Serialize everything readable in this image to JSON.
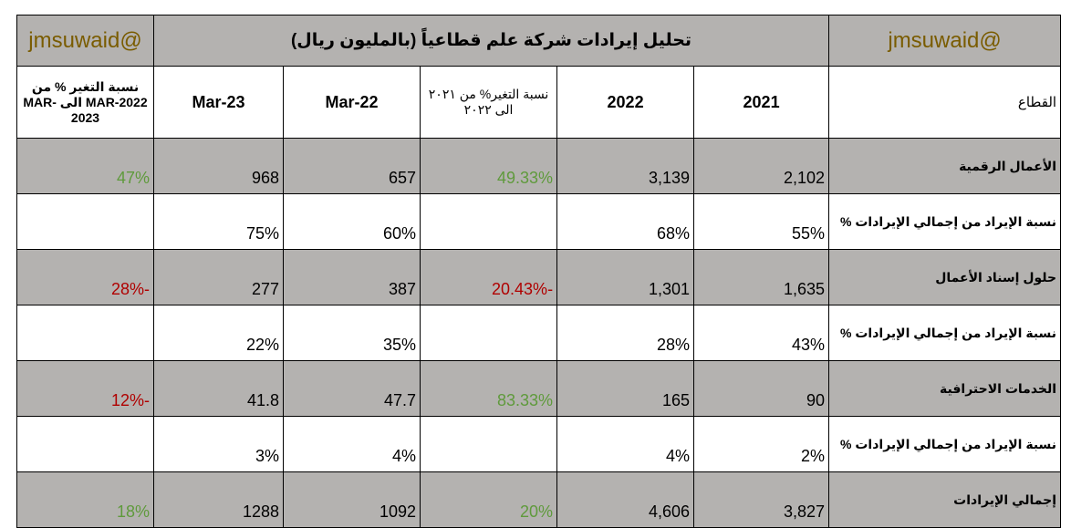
{
  "header": {
    "title": "تحليل إيرادات شركة علم قطاعياً (بالمليون ريال)",
    "handle_right": "@jmsuwaid",
    "handle_left": "@jmsuwaid"
  },
  "columns": {
    "sector": "القطاع",
    "y2021": "2021",
    "y2022": "2022",
    "change_annual": "نسبة التغير% من ٢٠٢١ الى ٢٠٢٢",
    "mar22": "Mar-22",
    "mar23": "Mar-23",
    "change_quarter": "نسبة التغير % من MAR-2022 الى MAR-2023"
  },
  "rows": [
    {
      "label": "الأعمال الرقمية",
      "y2021": "2,102",
      "y2022": "3,139",
      "chg_annual": "49.33%",
      "mar22": "657",
      "mar23": "968",
      "chg_quarter": "47%"
    },
    {
      "label": "نسبة الإيراد من إجمالي الإيرادات %",
      "y2021": "55%",
      "y2022": "68%",
      "chg_annual": "",
      "mar22": "60%",
      "mar23": "75%",
      "chg_quarter": ""
    },
    {
      "label": "حلول إسناد الأعمال",
      "y2021": "1,635",
      "y2022": "1,301",
      "chg_annual": "-20.43%",
      "mar22": "387",
      "mar23": "277",
      "chg_quarter": "-28%"
    },
    {
      "label": "نسبة الإيراد من إجمالي الإيرادات %",
      "y2021": "43%",
      "y2022": "28%",
      "chg_annual": "",
      "mar22": "35%",
      "mar23": "22%",
      "chg_quarter": ""
    },
    {
      "label": "الخدمات الاحترافية",
      "y2021": "90",
      "y2022": "165",
      "chg_annual": "83.33%",
      "mar22": "47.7",
      "mar23": "41.8",
      "chg_quarter": "-12%"
    },
    {
      "label": "نسبة الإيراد من إجمالي الإيرادات %",
      "y2021": "2%",
      "y2022": "4%",
      "chg_annual": "",
      "mar22": "4%",
      "mar23": "3%",
      "chg_quarter": ""
    },
    {
      "label": "إجمالي الإيرادات",
      "y2021": "3,827",
      "y2022": "4,606",
      "chg_annual": "20%",
      "mar22": "1092",
      "mar23": "1288",
      "chg_quarter": "18%"
    }
  ],
  "colors": {
    "band": "#b4b2b0",
    "positive": "#5f9a3c",
    "negative": "#b00000",
    "handle": "#7a5c00"
  }
}
